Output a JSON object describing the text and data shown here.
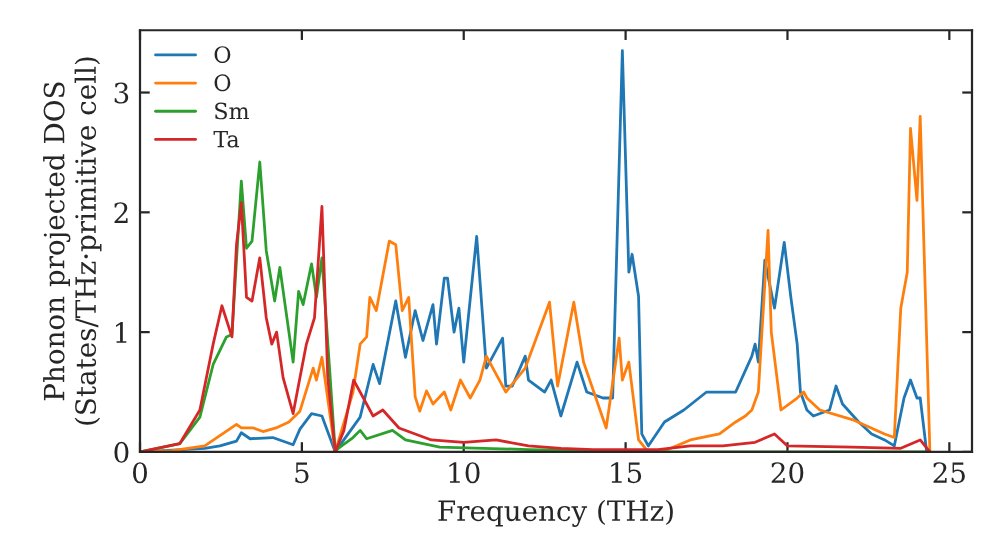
{
  "chart_data": {
    "type": "line",
    "xlabel": "Frequency (THz)",
    "ylabel": "Phonon projected DOS\n(States/THz·primitive cell)",
    "xlim": [
      0,
      25.7
    ],
    "ylim": [
      0,
      3.52
    ],
    "xticks": [
      0,
      5,
      10,
      15,
      20,
      25
    ],
    "yticks": [
      0,
      1,
      2,
      3
    ],
    "grid": false,
    "legend": "top left",
    "marker": "none",
    "line_style": "solid",
    "series": [
      {
        "name": "O",
        "color": "#1f77b4",
        "x": [
          0,
          1,
          2,
          2.47,
          2.98,
          3.13,
          3.4,
          4.1,
          4.73,
          4.94,
          5.3,
          5.62,
          6.03,
          6.8,
          7.2,
          7.4,
          7.9,
          8.2,
          8.5,
          8.74,
          9.05,
          9.16,
          9.4,
          9.5,
          9.7,
          9.85,
          10.0,
          10.4,
          10.7,
          11.2,
          11.3,
          11.5,
          11.9,
          12.0,
          12.5,
          12.7,
          13.0,
          13.5,
          13.8,
          14.3,
          14.6,
          14.9,
          15.1,
          15.2,
          15.4,
          15.5,
          15.7,
          16.2,
          16.8,
          17.5,
          17.9,
          18.4,
          18.9,
          19.0,
          19.1,
          19.3,
          19.6,
          19.9,
          20.1,
          20.3,
          20.4,
          20.6,
          20.8,
          21.3,
          21.5,
          21.7,
          22.2,
          22.6,
          23.0,
          23.3,
          23.6,
          23.8,
          24.0,
          24.1,
          24.3
        ],
        "values": [
          0,
          null,
          0.03,
          0.05,
          0.09,
          0.16,
          0.11,
          0.12,
          0.06,
          0.19,
          0.32,
          0.3,
          0,
          0.29,
          0.73,
          0.57,
          1.26,
          0.79,
          1.18,
          0.93,
          1.23,
          0.9,
          1.45,
          1.45,
          1.0,
          1.2,
          0.75,
          1.8,
          0.7,
          0.95,
          0.55,
          0.55,
          0.8,
          0.6,
          0.5,
          0.6,
          0.3,
          0.75,
          0.5,
          0.45,
          0.45,
          3.35,
          1.5,
          1.65,
          1.3,
          0.15,
          0.05,
          0.25,
          0.35,
          0.5,
          0.5,
          0.5,
          0.8,
          0.9,
          0.75,
          1.6,
          1.2,
          1.75,
          1.3,
          0.9,
          0.5,
          0.35,
          0.3,
          0.35,
          0.55,
          0.4,
          0.25,
          0.15,
          0.1,
          0.05,
          0.45,
          0.6,
          0.45,
          0.45,
          0
        ]
      },
      {
        "name": "O",
        "color": "#ff7f0e",
        "x": [
          0,
          1,
          2,
          2.98,
          3.13,
          3.5,
          3.8,
          4.2,
          4.6,
          4.94,
          5.35,
          5.45,
          5.62,
          6.03,
          6.58,
          6.8,
          7.0,
          7.1,
          7.3,
          7.7,
          7.9,
          8.1,
          8.3,
          8.5,
          8.64,
          8.85,
          9.05,
          9.4,
          9.6,
          9.9,
          10.2,
          10.5,
          10.7,
          11.1,
          11.3,
          11.9,
          12.65,
          12.9,
          13.4,
          13.7,
          14.4,
          14.8,
          14.9,
          15.1,
          15.4,
          15.7,
          16.3,
          17.0,
          17.9,
          18.4,
          18.7,
          18.9,
          19.1,
          19.4,
          19.5,
          19.8,
          20.3,
          20.5,
          20.6,
          21.0,
          22.0,
          23.0,
          23.3,
          23.5,
          23.7,
          23.8,
          24.0,
          24.1,
          24.4
        ],
        "values": [
          0,
          0.01,
          0.05,
          0.23,
          0.2,
          0.2,
          0.17,
          0.2,
          0.25,
          0.34,
          0.7,
          0.6,
          0.79,
          0,
          0.5,
          0.9,
          0.96,
          1.29,
          1.18,
          1.76,
          1.73,
          1.18,
          1.29,
          0.46,
          0.34,
          0.51,
          0.4,
          0.5,
          0.35,
          0.6,
          0.45,
          0.6,
          0.8,
          0.6,
          0.5,
          0.7,
          1.25,
          0.55,
          1.25,
          0.75,
          0.2,
          0.95,
          0.6,
          0.75,
          0.1,
          0,
          0.02,
          0.1,
          0.15,
          0.25,
          0.3,
          0.35,
          0.5,
          1.85,
          1.0,
          0.35,
          0.45,
          0.5,
          0.45,
          0.35,
          0.27,
          0.15,
          0.12,
          1.2,
          1.5,
          2.7,
          2.1,
          2.8,
          0
        ]
      },
      {
        "name": "Sm",
        "color": "#2ca02c",
        "x": [
          0,
          1.23,
          1.85,
          2.26,
          2.67,
          2.84,
          3.13,
          3.29,
          3.46,
          3.7,
          3.9,
          4.16,
          4.32,
          4.73,
          4.9,
          5.04,
          5.3,
          5.45,
          5.62,
          6.03,
          6.58,
          6.8,
          7.0,
          7.8,
          8.2,
          9.26,
          12,
          16,
          24.4
        ],
        "values": [
          0,
          0.07,
          0.29,
          0.73,
          0.96,
          0.98,
          2.26,
          1.7,
          1.76,
          2.42,
          1.68,
          1.26,
          1.54,
          0.75,
          1.34,
          1.23,
          1.57,
          1.29,
          1.62,
          0.01,
          0.12,
          0.18,
          0.11,
          0.18,
          0.1,
          0.04,
          0.02,
          0,
          0
        ]
      },
      {
        "name": "Ta",
        "color": "#d62728",
        "x": [
          0,
          1.23,
          1.85,
          2.26,
          2.53,
          2.84,
          2.98,
          3.13,
          3.29,
          3.46,
          3.7,
          3.9,
          4.07,
          4.22,
          4.42,
          4.73,
          4.94,
          5.14,
          5.39,
          5.62,
          5.8,
          6.03,
          6.3,
          6.6,
          7.2,
          7.5,
          8.0,
          8.5,
          9.0,
          10,
          11,
          12,
          13,
          14,
          16,
          17,
          18,
          19,
          19.6,
          20,
          22,
          23.5,
          24.1,
          24.4
        ],
        "values": [
          0,
          0.07,
          0.35,
          0.9,
          1.22,
          0.96,
          1.73,
          2.08,
          1.29,
          1.26,
          1.62,
          1.12,
          0.9,
          1.0,
          0.62,
          0.32,
          0.62,
          0.9,
          1.12,
          2.05,
          0.62,
          0,
          0.18,
          0.6,
          0.3,
          0.35,
          0.2,
          0.15,
          0.1,
          0.08,
          0.1,
          0.05,
          0.03,
          0.02,
          0.02,
          0.05,
          0.05,
          0.08,
          0.15,
          0.05,
          0.04,
          0.03,
          0.1,
          0
        ]
      }
    ]
  }
}
